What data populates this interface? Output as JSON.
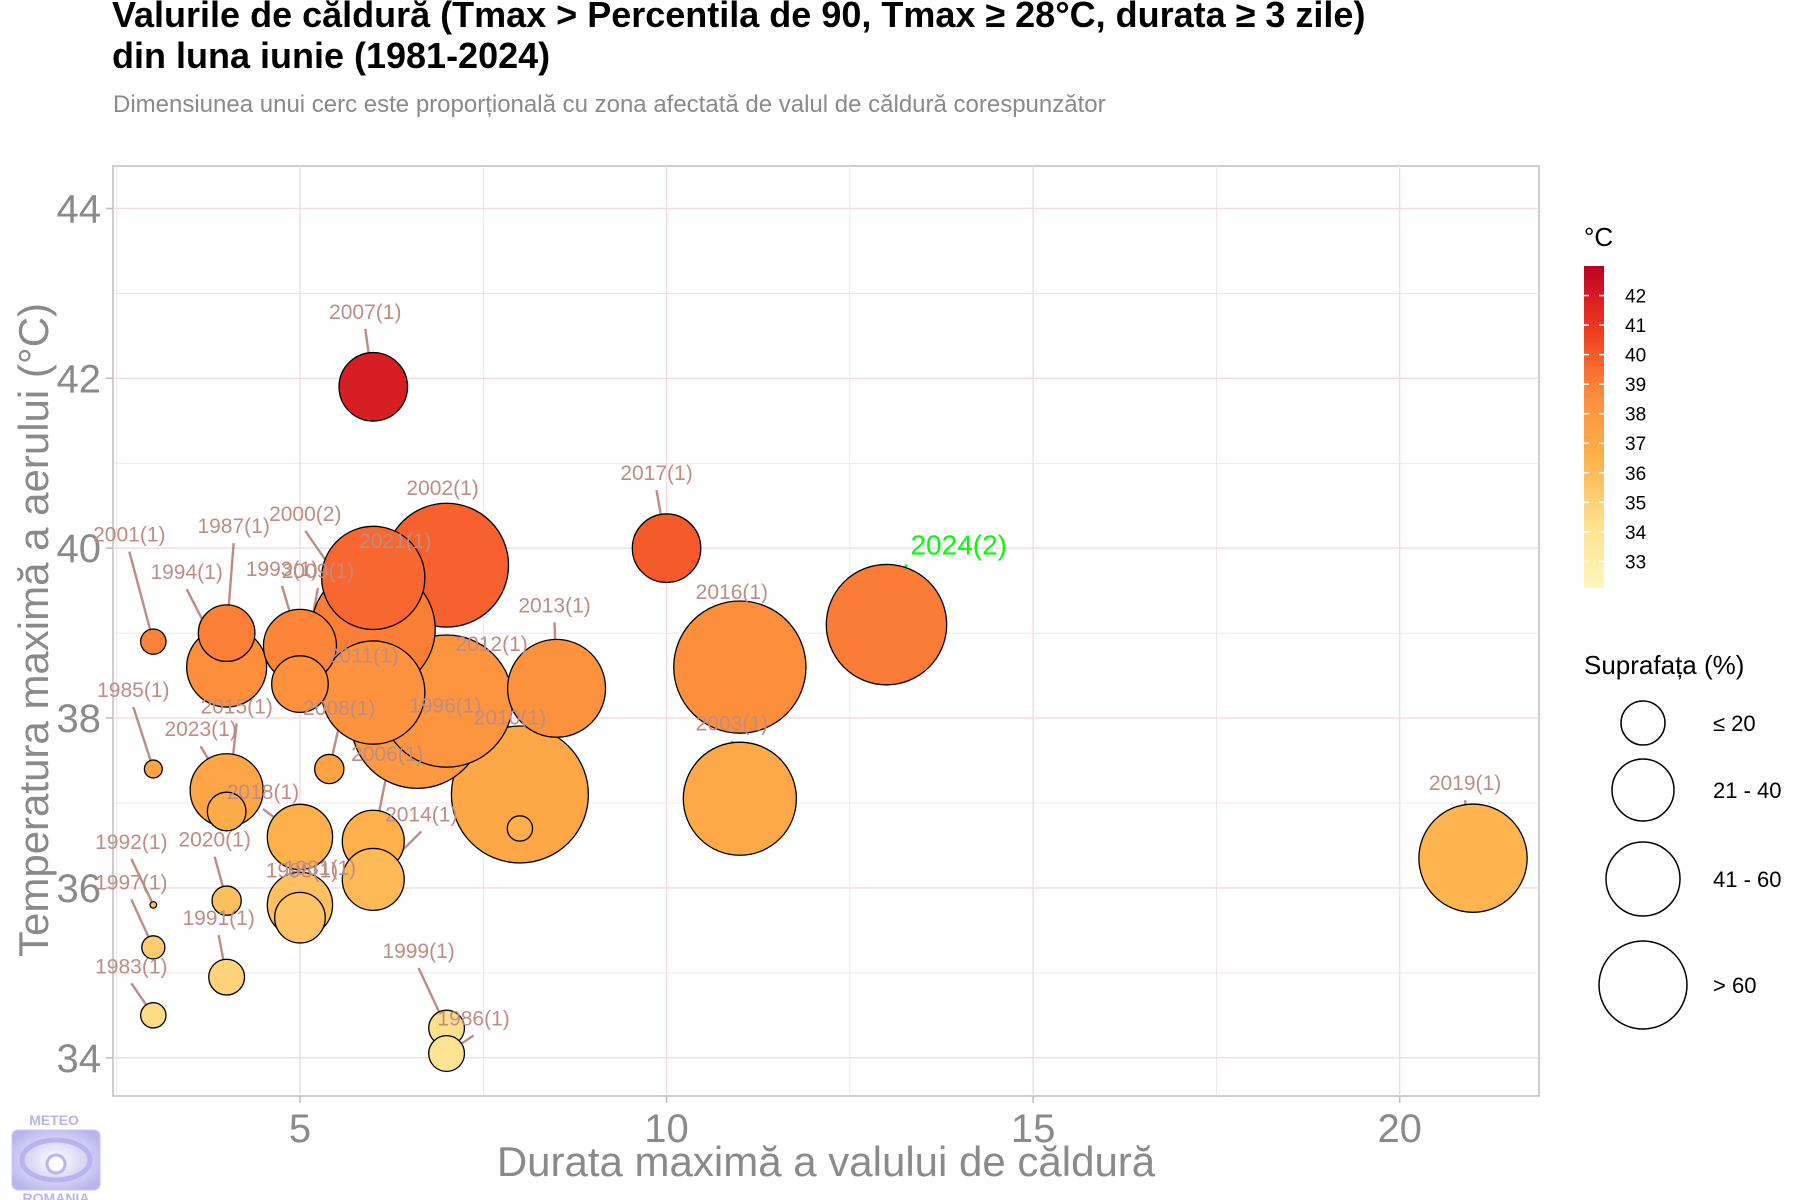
{
  "title_line1": "Valurile de căldură (Tmax > Percentila de 90, Tmax ≥ 28°C, durata ≥ 3 zile)",
  "title_line2": "din luna iunie (1981-2024)",
  "subtitle": "Dimensiunea unui cerc este proporțională cu zona afectată de valul de căldură corespunzător",
  "logo": {
    "top": "METEO",
    "bottom": "ROMANIA"
  },
  "colors": {
    "highlight": "#00ff00",
    "label": "#bf8c84",
    "grid": "#f0dce0",
    "panel_border": "#bdbdbd"
  },
  "chart_data": {
    "type": "scatter",
    "xlabel": "Durata maximă a valului de căldură",
    "ylabel": "Temperatura maximă a aerului (°C)",
    "xlim": [
      2.45,
      21.9
    ],
    "ylim": [
      33.55,
      44.5
    ],
    "xticks": [
      5,
      10,
      15,
      20
    ],
    "yticks": [
      34,
      36,
      38,
      40,
      42,
      44
    ],
    "grid": true,
    "points": [
      {
        "label": "2007(1)",
        "x": 6,
        "y": 41.9,
        "area": 22
      },
      {
        "label": "2017(1)",
        "x": 10,
        "y": 40.0,
        "area": 22
      },
      {
        "label": "2024(2)",
        "x": 13,
        "y": 39.1,
        "area": 68,
        "highlight": true
      },
      {
        "label": "2002(1)",
        "x": 7,
        "y": 39.8,
        "area": 72
      },
      {
        "label": "2021(1)",
        "x": 6,
        "y": 39.65,
        "area": 50
      },
      {
        "label": "2000(2)",
        "x": 6,
        "y": 39.05,
        "area": 72
      },
      {
        "label": "2001(1)",
        "x": 3,
        "y": 38.9,
        "area": 3
      },
      {
        "label": "1987(1)",
        "x": 4,
        "y": 39.0,
        "area": 15
      },
      {
        "label": "1994(1)",
        "x": 4,
        "y": 38.6,
        "area": 30
      },
      {
        "label": "1993(1)",
        "x": 5,
        "y": 38.85,
        "area": 25
      },
      {
        "label": "2009(1)",
        "x": 5,
        "y": 38.4,
        "area": 15
      },
      {
        "label": "1996(1)",
        "x": 6.6,
        "y": 37.95,
        "area": 82
      },
      {
        "label": "2012(1)",
        "x": 7,
        "y": 38.2,
        "area": 82
      },
      {
        "label": "2011(1)",
        "x": 6,
        "y": 38.3,
        "area": 50
      },
      {
        "label": "2013(1)",
        "x": 8.5,
        "y": 38.35,
        "area": 45
      },
      {
        "label": "2016(1)",
        "x": 11,
        "y": 38.6,
        "area": 82
      },
      {
        "label": "2003(1)",
        "x": 11,
        "y": 37.05,
        "area": 60
      },
      {
        "label": "2010(1)",
        "x": 8,
        "y": 37.1,
        "area": 88
      },
      {
        "label": "2019(1)",
        "x": 21,
        "y": 36.35,
        "area": 55
      },
      {
        "label": "1985(1)",
        "x": 3,
        "y": 37.4,
        "area": 1.5
      },
      {
        "label": "2023(1)",
        "x": 4,
        "y": 37.15,
        "area": 25
      },
      {
        "label": "2015(1)",
        "x": 4,
        "y": 36.9,
        "area": 7
      },
      {
        "label": "2008(1)",
        "x": 5.4,
        "y": 37.4,
        "area": 4
      },
      {
        "label": "2018(1)",
        "x": 5,
        "y": 36.6,
        "area": 20
      },
      {
        "label": "1981(1)",
        "x": 5,
        "y": 35.8,
        "area": 20
      },
      {
        "label": "1998(1)",
        "x": 5,
        "y": 35.65,
        "area": 12
      },
      {
        "label": "2006(1)",
        "x": 6,
        "y": 36.55,
        "area": 18
      },
      {
        "label": "2014(1)",
        "x": 6,
        "y": 36.1,
        "area": 18
      },
      {
        "label": "2014b",
        "x": 8,
        "y": 36.7,
        "area": 3,
        "nolabel": true
      },
      {
        "label": "1992(1)",
        "x": 3,
        "y": 35.8,
        "area": 0.2
      },
      {
        "label": "2020(1)",
        "x": 4,
        "y": 35.85,
        "area": 4
      },
      {
        "label": "1997(1)",
        "x": 3,
        "y": 35.3,
        "area": 2.5
      },
      {
        "label": "1991(1)",
        "x": 4,
        "y": 34.95,
        "area": 6
      },
      {
        "label": "1983(1)",
        "x": 3,
        "y": 34.5,
        "area": 3
      },
      {
        "label": "1999(1)",
        "x": 7,
        "y": 34.35,
        "area": 6
      },
      {
        "label": "1986(1)",
        "x": 7,
        "y": 34.05,
        "area": 6
      }
    ],
    "color_scale": {
      "title": "°C",
      "min": 32.1,
      "max": 43.0,
      "ticks": [
        33,
        34,
        35,
        36,
        37,
        38,
        39,
        40,
        41,
        42
      ]
    },
    "size_legend": {
      "title": "Suprafața (%)",
      "items": [
        "≤ 20",
        "21 - 40",
        "41 - 60",
        "> 60"
      ]
    }
  }
}
